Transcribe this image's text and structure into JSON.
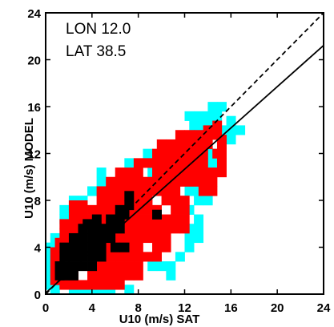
{
  "chart_data": {
    "type": "heatmap",
    "title": "",
    "xlabel": "U10 (m/s) SAT",
    "ylabel": "U10 (m/s) MODEL",
    "xlim": [
      0,
      24
    ],
    "ylim": [
      0,
      24
    ],
    "xticks": [
      0,
      4,
      8,
      12,
      16,
      20,
      24
    ],
    "yticks": [
      0,
      4,
      8,
      12,
      16,
      20,
      24
    ],
    "grid": false,
    "annotations": [
      "LON 12.0",
      "LAT 38.5"
    ],
    "cell_size": 0.8,
    "colors": {
      "low": "#00ffff",
      "mid": "#ff0000",
      "high": "#000000",
      "frame": "#000000"
    },
    "reference_lines": [
      {
        "style": "dashed",
        "slope": 1.0,
        "intercept": 0.0
      },
      {
        "style": "solid",
        "slope": 0.88,
        "intercept": 0.1
      }
    ],
    "cells": {
      "low": [
        [
          0.8,
          0.4
        ],
        [
          2.4,
          0.4
        ],
        [
          3.2,
          0.4
        ],
        [
          4.0,
          0.4
        ],
        [
          4.8,
          0.4
        ],
        [
          5.6,
          0.4
        ],
        [
          7.2,
          0.4
        ],
        [
          0.4,
          0.8
        ],
        [
          0.4,
          1.6
        ],
        [
          0.4,
          2.4
        ],
        [
          0.4,
          3.2
        ],
        [
          0.4,
          4.0
        ],
        [
          0.8,
          4.8
        ],
        [
          1.6,
          6.4
        ],
        [
          1.6,
          7.2
        ],
        [
          2.4,
          8.0
        ],
        [
          3.2,
          8.0
        ],
        [
          4.0,
          8.8
        ],
        [
          4.8,
          9.6
        ],
        [
          4.8,
          10.4
        ],
        [
          7.2,
          11.2
        ],
        [
          9.2,
          10.4
        ],
        [
          10.0,
          10.4
        ],
        [
          10.8,
          11.2
        ],
        [
          8.8,
          12.0
        ],
        [
          9.2,
          2.4
        ],
        [
          10.0,
          2.4
        ],
        [
          10.8,
          2.4
        ],
        [
          10.8,
          1.6
        ],
        [
          11.6,
          3.2
        ],
        [
          12.4,
          4.0
        ],
        [
          12.4,
          4.8
        ],
        [
          12.4,
          5.6
        ],
        [
          13.2,
          4.8
        ],
        [
          13.2,
          5.6
        ],
        [
          13.2,
          6.4
        ],
        [
          12.4,
          7.2
        ],
        [
          13.2,
          8.0
        ],
        [
          14.0,
          8.0
        ],
        [
          13.2,
          8.8
        ],
        [
          12.4,
          8.8
        ],
        [
          13.6,
          10.4
        ],
        [
          14.4,
          11.2
        ],
        [
          14.4,
          12.0
        ],
        [
          12.8,
          14.4
        ],
        [
          13.6,
          14.4
        ],
        [
          14.4,
          14.4
        ],
        [
          12.4,
          15.2
        ],
        [
          13.2,
          15.2
        ],
        [
          14.0,
          15.2
        ],
        [
          14.8,
          15.2
        ],
        [
          15.2,
          14.0
        ],
        [
          16.0,
          14.0
        ],
        [
          16.0,
          14.8
        ],
        [
          15.2,
          16.0
        ],
        [
          14.4,
          16.0
        ],
        [
          13.6,
          12.8
        ],
        [
          16.8,
          14.0
        ],
        [
          16.0,
          13.2
        ]
      ],
      "mid": [
        [
          0.8,
          1.2
        ],
        [
          0.8,
          2.0
        ],
        [
          0.8,
          2.8
        ],
        [
          0.8,
          3.6
        ],
        [
          1.2,
          4.4
        ],
        [
          1.6,
          5.2
        ],
        [
          1.6,
          6.0
        ],
        [
          2.4,
          6.8
        ],
        [
          2.4,
          7.6
        ],
        [
          3.2,
          7.6
        ],
        [
          4.0,
          7.2
        ],
        [
          4.8,
          8.0
        ],
        [
          4.8,
          8.8
        ],
        [
          5.6,
          9.6
        ],
        [
          5.6,
          8.8
        ],
        [
          6.4,
          9.6
        ],
        [
          6.4,
          10.4
        ],
        [
          7.2,
          10.4
        ],
        [
          8.0,
          10.4
        ],
        [
          8.0,
          11.2
        ],
        [
          8.8,
          11.2
        ],
        [
          9.6,
          12.0
        ],
        [
          10.4,
          12.0
        ],
        [
          10.0,
          12.8
        ],
        [
          10.8,
          12.8
        ],
        [
          11.6,
          12.8
        ],
        [
          11.6,
          13.6
        ],
        [
          12.4,
          13.6
        ],
        [
          12.4,
          12.8
        ],
        [
          13.2,
          13.6
        ],
        [
          13.2,
          12.8
        ],
        [
          14.0,
          13.6
        ],
        [
          14.0,
          12.8
        ],
        [
          14.0,
          14.0
        ],
        [
          14.8,
          13.6
        ],
        [
          15.2,
          12.8
        ],
        [
          14.8,
          12.0
        ],
        [
          15.2,
          11.2
        ],
        [
          14.4,
          10.4
        ],
        [
          13.6,
          9.6
        ],
        [
          12.8,
          9.6
        ],
        [
          12.0,
          9.6
        ],
        [
          12.0,
          10.4
        ],
        [
          12.0,
          11.2
        ],
        [
          11.2,
          10.4
        ],
        [
          11.2,
          9.6
        ],
        [
          10.4,
          9.6
        ],
        [
          10.4,
          8.8
        ],
        [
          11.2,
          8.8
        ],
        [
          12.0,
          8.0
        ],
        [
          11.2,
          8.0
        ],
        [
          10.4,
          8.0
        ],
        [
          11.2,
          7.2
        ],
        [
          11.2,
          6.4
        ],
        [
          10.4,
          6.4
        ],
        [
          10.4,
          5.6
        ],
        [
          9.6,
          5.6
        ],
        [
          9.6,
          6.4
        ],
        [
          9.6,
          7.2
        ],
        [
          8.8,
          7.2
        ],
        [
          8.8,
          6.4
        ],
        [
          8.8,
          5.6
        ],
        [
          8.8,
          4.8
        ],
        [
          9.6,
          4.8
        ],
        [
          10.4,
          4.8
        ],
        [
          11.2,
          5.6
        ],
        [
          12.0,
          5.6
        ],
        [
          12.0,
          6.4
        ],
        [
          12.0,
          7.2
        ],
        [
          8.8,
          3.2
        ],
        [
          8.0,
          3.2
        ],
        [
          7.2,
          3.2
        ],
        [
          6.4,
          3.2
        ],
        [
          5.6,
          3.2
        ],
        [
          9.6,
          3.2
        ],
        [
          9.6,
          4.0
        ],
        [
          10.4,
          4.0
        ],
        [
          8.0,
          4.0
        ],
        [
          7.2,
          4.0
        ],
        [
          6.4,
          4.0
        ],
        [
          5.6,
          4.0
        ],
        [
          8.0,
          2.4
        ],
        [
          7.2,
          2.4
        ],
        [
          6.4,
          2.4
        ],
        [
          5.6,
          2.4
        ],
        [
          5.6,
          1.6
        ],
        [
          6.4,
          1.6
        ],
        [
          7.2,
          1.6
        ],
        [
          8.0,
          1.6
        ],
        [
          6.4,
          0.8
        ],
        [
          5.6,
          0.8
        ],
        [
          4.8,
          0.8
        ],
        [
          4.0,
          0.8
        ],
        [
          3.2,
          0.8
        ],
        [
          2.4,
          0.8
        ],
        [
          1.6,
          0.8
        ],
        [
          6.4,
          4.8
        ],
        [
          7.2,
          4.8
        ],
        [
          8.0,
          4.8
        ],
        [
          7.2,
          5.6
        ],
        [
          8.0,
          5.6
        ],
        [
          7.2,
          6.4
        ],
        [
          8.0,
          6.4
        ],
        [
          7.2,
          7.2
        ],
        [
          8.0,
          7.2
        ],
        [
          7.2,
          8.0
        ],
        [
          8.0,
          8.0
        ],
        [
          8.8,
          8.0
        ],
        [
          8.8,
          8.8
        ],
        [
          9.6,
          8.8
        ],
        [
          7.2,
          8.8
        ],
        [
          8.0,
          8.8
        ],
        [
          6.4,
          8.8
        ],
        [
          8.8,
          9.6
        ],
        [
          9.6,
          9.6
        ],
        [
          7.2,
          9.6
        ],
        [
          8.0,
          9.6
        ],
        [
          6.4,
          8.0
        ],
        [
          5.6,
          8.0
        ],
        [
          5.6,
          7.2
        ],
        [
          6.4,
          7.2
        ],
        [
          4.8,
          7.2
        ],
        [
          4.8,
          6.4
        ],
        [
          4.0,
          6.4
        ],
        [
          3.2,
          6.4
        ],
        [
          3.2,
          6.8
        ],
        [
          4.0,
          6.0
        ],
        [
          2.4,
          6.0
        ],
        [
          2.4,
          5.2
        ],
        [
          1.6,
          4.4
        ],
        [
          4.0,
          1.6
        ],
        [
          4.8,
          1.6
        ],
        [
          4.8,
          2.4
        ],
        [
          2.4,
          1.6
        ],
        [
          1.6,
          1.6
        ],
        [
          12.8,
          12.0
        ],
        [
          13.6,
          12.0
        ],
        [
          12.8,
          11.2
        ],
        [
          13.6,
          11.2
        ],
        [
          13.6,
          10.4
        ],
        [
          12.8,
          10.4
        ],
        [
          12.0,
          12.0
        ],
        [
          11.2,
          12.0
        ],
        [
          11.2,
          11.2
        ],
        [
          10.4,
          11.2
        ],
        [
          10.4,
          10.4
        ],
        [
          9.6,
          10.4
        ],
        [
          9.6,
          11.2
        ],
        [
          14.4,
          13.6
        ],
        [
          13.6,
          13.2
        ],
        [
          14.8,
          14.4
        ],
        [
          15.2,
          13.2
        ],
        [
          14.4,
          8.8
        ],
        [
          13.6,
          8.8
        ],
        [
          14.4,
          9.6
        ],
        [
          15.2,
          10.4
        ],
        [
          15.2,
          12.0
        ]
      ],
      "high": [
        [
          1.6,
          2.4
        ],
        [
          1.6,
          3.2
        ],
        [
          1.6,
          4.0
        ],
        [
          2.4,
          2.4
        ],
        [
          2.4,
          3.2
        ],
        [
          2.4,
          4.0
        ],
        [
          2.4,
          4.8
        ],
        [
          3.2,
          2.4
        ],
        [
          3.2,
          3.2
        ],
        [
          3.2,
          4.0
        ],
        [
          3.2,
          4.8
        ],
        [
          3.2,
          5.6
        ],
        [
          4.0,
          2.4
        ],
        [
          4.0,
          3.2
        ],
        [
          4.0,
          4.0
        ],
        [
          4.0,
          4.8
        ],
        [
          4.0,
          5.6
        ],
        [
          4.8,
          3.2
        ],
        [
          4.8,
          4.0
        ],
        [
          4.8,
          4.8
        ],
        [
          4.8,
          5.6
        ],
        [
          5.6,
          4.8
        ],
        [
          5.6,
          5.6
        ],
        [
          5.6,
          6.4
        ],
        [
          6.4,
          5.6
        ],
        [
          6.4,
          6.4
        ],
        [
          6.4,
          7.2
        ],
        [
          7.2,
          7.6
        ],
        [
          7.2,
          8.4
        ],
        [
          6.8,
          6.8
        ],
        [
          2.4,
          1.6
        ],
        [
          1.2,
          1.6
        ],
        [
          1.2,
          2.4
        ],
        [
          1.6,
          1.6
        ],
        [
          6.0,
          4.0
        ],
        [
          6.8,
          4.0
        ],
        [
          9.6,
          6.8
        ],
        [
          4.4,
          6.4
        ],
        [
          3.6,
          6.0
        ]
      ]
    }
  }
}
